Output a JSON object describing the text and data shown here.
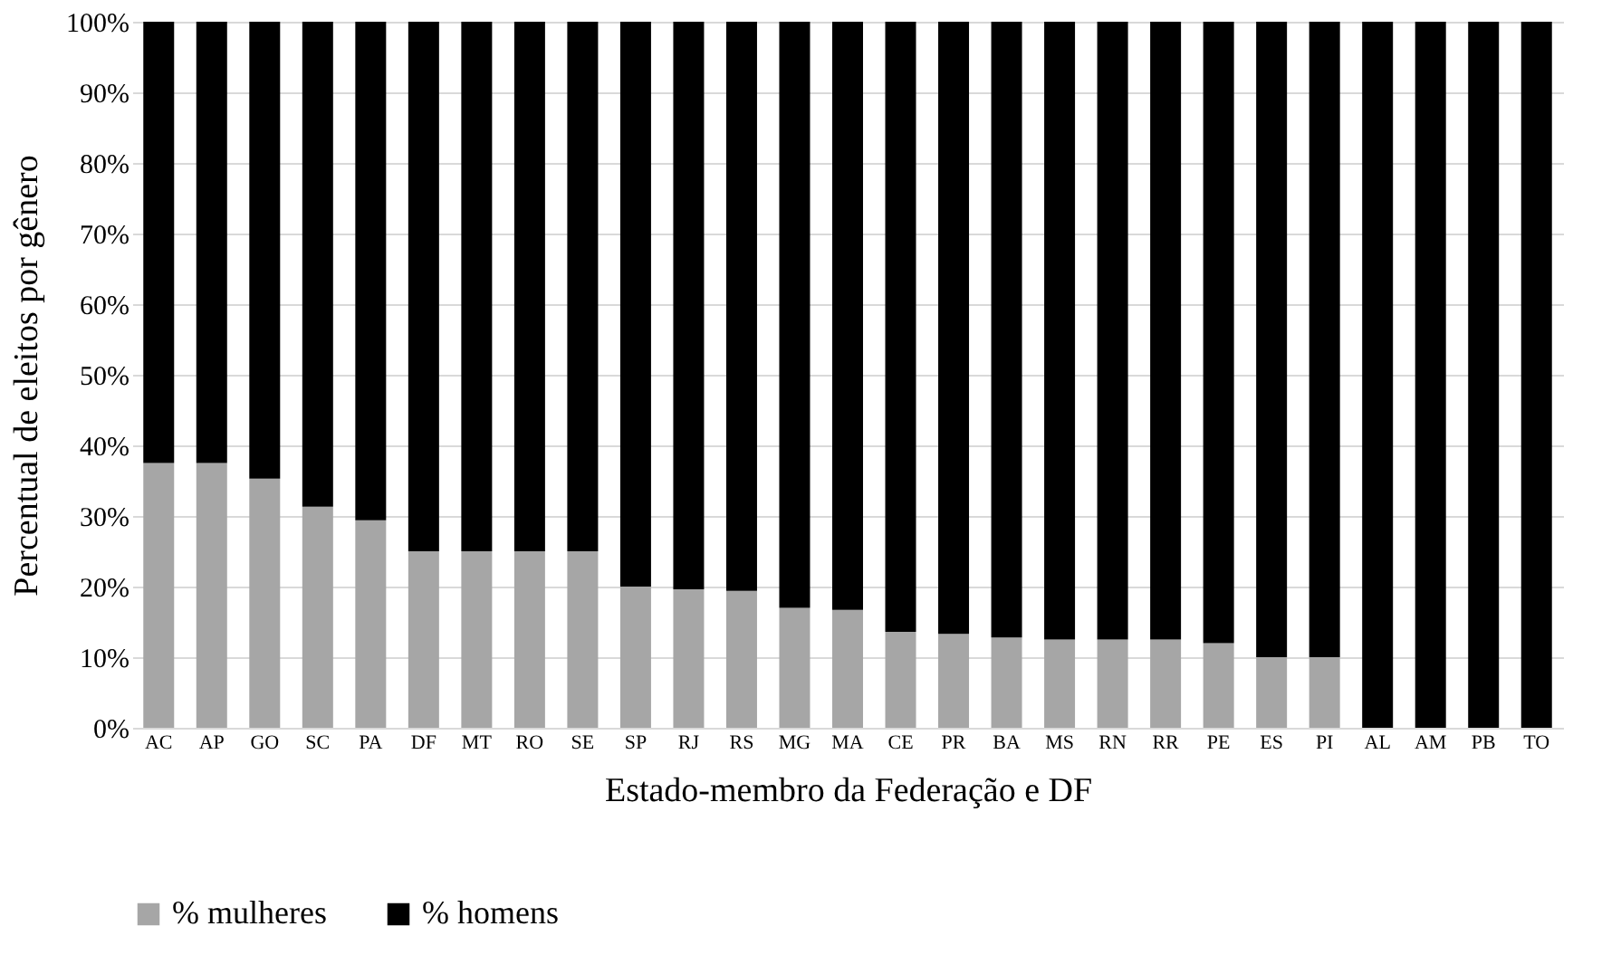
{
  "chart_data": {
    "type": "bar",
    "stacked": true,
    "xlabel": "Estado-membro da Federação e DF",
    "ylabel": "Percentual de eleitos por gênero",
    "categories": [
      "AC",
      "AP",
      "GO",
      "SC",
      "PA",
      "DF",
      "MT",
      "RO",
      "SE",
      "SP",
      "RJ",
      "RS",
      "MG",
      "MA",
      "CE",
      "PR",
      "BA",
      "MS",
      "RN",
      "RR",
      "PE",
      "ES",
      "PI",
      "AL",
      "AM",
      "PB",
      "TO"
    ],
    "series": [
      {
        "name": "% mulheres",
        "color": "#a6a6a6",
        "values": [
          37.5,
          37.5,
          35.3,
          31.3,
          29.4,
          25,
          25,
          25,
          25,
          20,
          19.6,
          19.4,
          17,
          16.7,
          13.6,
          13.3,
          12.8,
          12.5,
          12.5,
          12.5,
          12,
          10,
          10,
          0,
          0,
          0,
          0
        ]
      },
      {
        "name": "% homens",
        "color": "#000000",
        "values": [
          62.5,
          62.5,
          64.7,
          68.7,
          70.6,
          75,
          75,
          75,
          75,
          80,
          80.4,
          80.6,
          83,
          83.3,
          86.4,
          86.7,
          87.2,
          87.5,
          87.5,
          87.5,
          88,
          90,
          90,
          100,
          100,
          100,
          100
        ]
      }
    ],
    "ylim": [
      0,
      100
    ],
    "yticks": [
      {
        "value": 0,
        "label": "0%"
      },
      {
        "value": 10,
        "label": "10%"
      },
      {
        "value": 20,
        "label": "20%"
      },
      {
        "value": 30,
        "label": "30%"
      },
      {
        "value": 40,
        "label": "40%"
      },
      {
        "value": 50,
        "label": "50%"
      },
      {
        "value": 60,
        "label": "60%"
      },
      {
        "value": 70,
        "label": "70%"
      },
      {
        "value": 80,
        "label": "80%"
      },
      {
        "value": 90,
        "label": "90%"
      },
      {
        "value": 100,
        "label": "100%"
      }
    ],
    "grid": "y",
    "legend": "bottom"
  }
}
